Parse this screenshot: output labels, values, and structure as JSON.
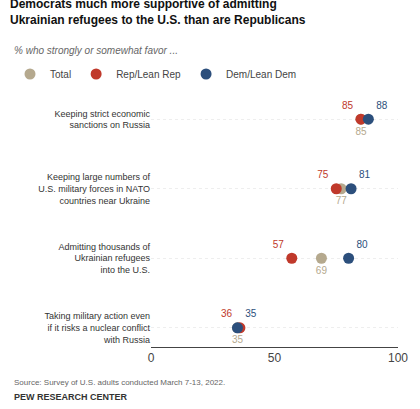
{
  "chart_data": {
    "type": "dot",
    "title": "Democrats much more supportive of admitting\nUkrainian refugees to the U.S. than are Republicans",
    "subtitle": "% who strongly or somewhat favor ...",
    "annotations": [
      "Source: Survey of U.S. adults conducted March 7-13, 2022.",
      "PEW RESEARCH CENTER"
    ],
    "categories": [
      "Keeping strict economic\nsanctions on Russia",
      "Keeping large numbers of\nU.S. military forces in NATO\ncountries near Ukraine",
      "Admitting thousands of\nUkrainian refugees\ninto the U.S.",
      "Taking military action even\nif it risks a nuclear conflict\nwith Russia"
    ],
    "series": [
      {
        "name": "Total",
        "color": "#b5a98e",
        "values": [
          85,
          77,
          69,
          35
        ]
      },
      {
        "name": "Rep/Lean Rep",
        "color": "#c0392b",
        "values": [
          85,
          75,
          57,
          36
        ]
      },
      {
        "name": "Dem/Lean Dem",
        "color": "#2c4f7c",
        "values": [
          88,
          81,
          80,
          35
        ]
      }
    ],
    "xlim": [
      0,
      100
    ],
    "xticks": [
      0,
      50,
      100
    ],
    "data_labels": true,
    "legend": "top",
    "grid": true
  }
}
